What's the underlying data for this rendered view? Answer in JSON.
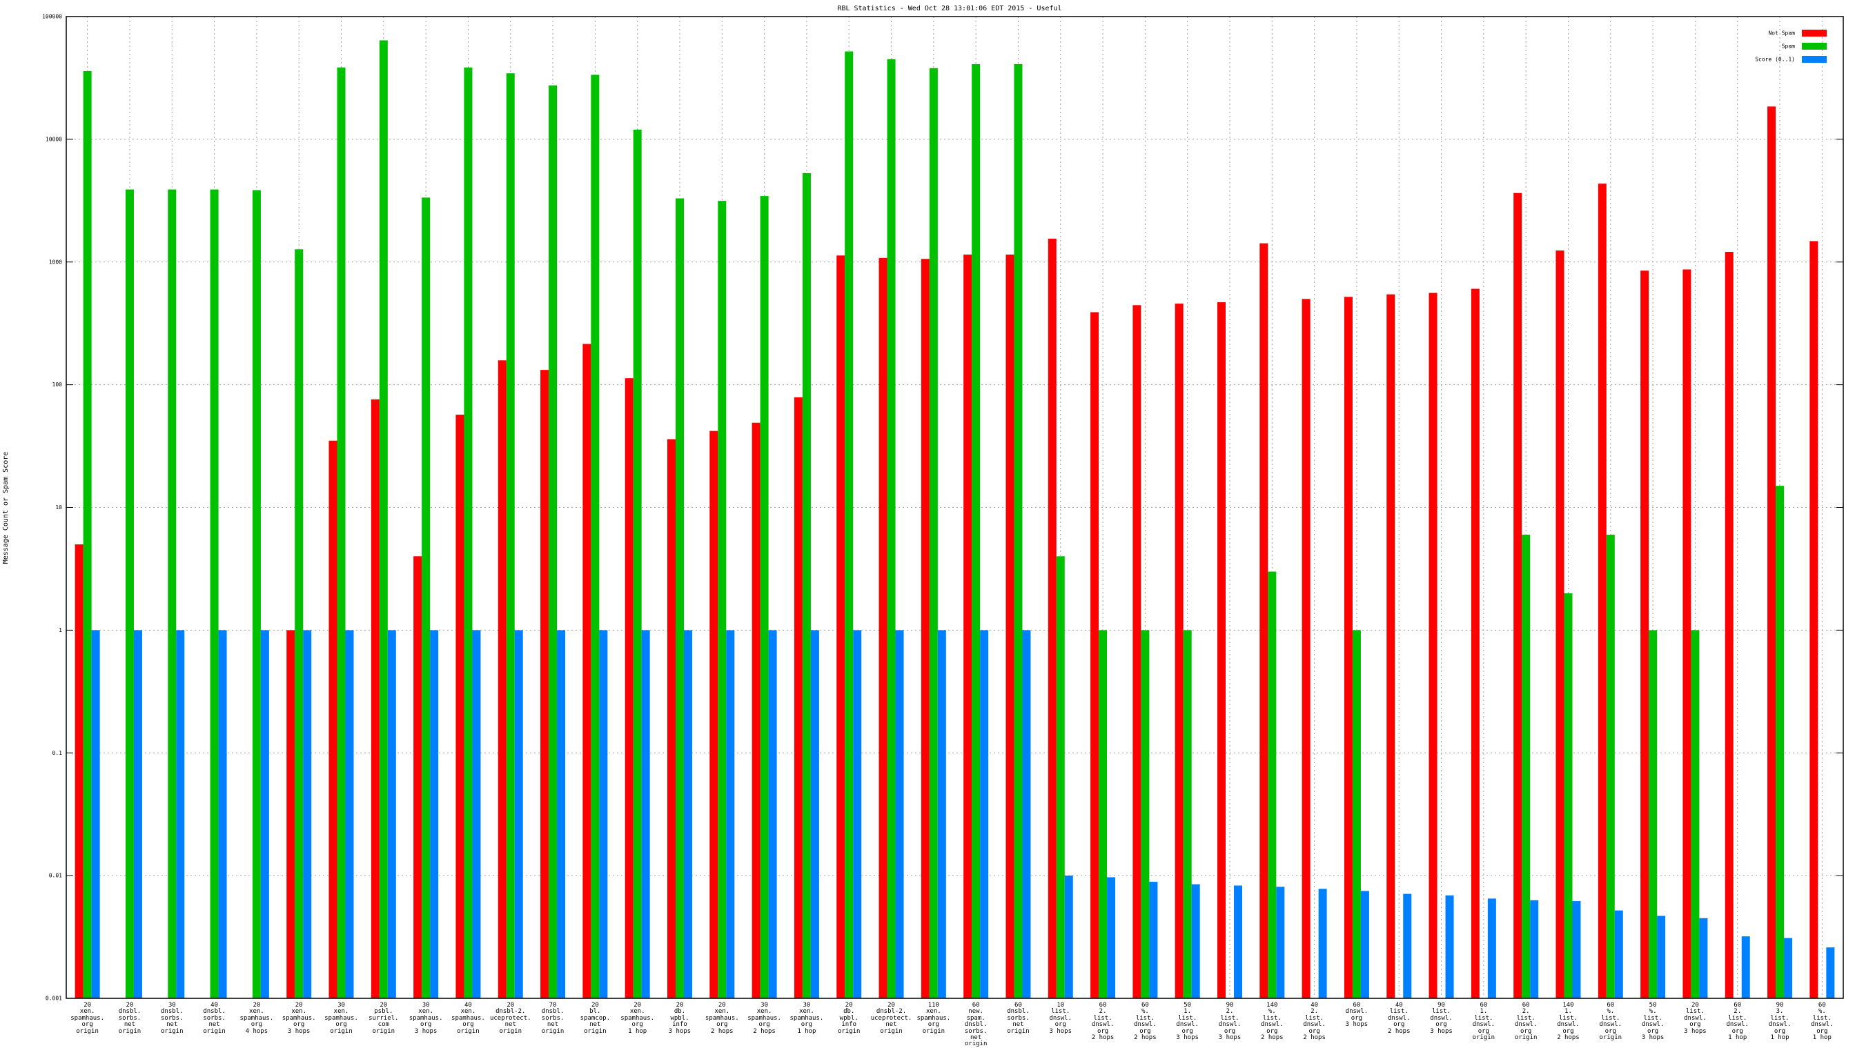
{
  "chart_data": {
    "type": "bar",
    "title": "RBL Statistics - Wed Oct 28 13:01:06 EDT 2015 - Useful",
    "y_label": "Message Count or Spam Score",
    "log_y": true,
    "grid": true,
    "legend": "upper right",
    "ylim": [
      0.001,
      100000
    ],
    "yticks": [
      100000,
      10000,
      1000,
      100,
      10,
      1,
      0.1,
      0.01,
      0.001
    ],
    "categories": [
      "20\nxen.\nspamhaus.\norg\norigin",
      "20\ndnsbl.\nsorbs.\nnet\norigin",
      "30\ndnsbl.\nsorbs.\nnet\norigin",
      "40\ndnsbl.\nsorbs.\nnet\norigin",
      "20\nxen.\nspamhaus.\norg\n4 hops",
      "20\nxen.\nspamhaus.\norg\n3 hops",
      "30\nxen.\nspamhaus.\norg\norigin",
      "20\npsbl.\nsurriel.\ncom\norigin",
      "30\nxen.\nspamhaus.\norg\n3 hops",
      "40\nxen.\nspamhaus.\norg\norigin",
      "20\ndnsbl-2.\nuceprotect.\nnet\norigin",
      "70\ndnsbl.\nsorbs.\nnet\norigin",
      "20\nbl.\nspamcop.\nnet\norigin",
      "20\nxen.\nspamhaus.\norg\n1 hop",
      "20\ndb.\nwpbl.\ninfo\n3 hops",
      "20\nxen.\nspamhaus.\norg\n2 hops",
      "30\nxen.\nspamhaus.\norg\n2 hops",
      "30\nxen.\nspamhaus.\norg\n1 hop",
      "20\ndb.\nwpbl.\ninfo\norigin",
      "20\ndnsbl-2.\nuceprotect.\nnet\norigin",
      "110\nxen.\nspamhaus.\norg\norigin",
      "60\nnew.\nspam.\ndnsbl.\nsorbs.\nnet\norigin",
      "60\ndnsbl.\nsorbs.\nnet\norigin",
      "10\nlist.\ndnswl.\norg\n3 hops",
      "60\n2.\nlist.\ndnswl.\norg\n2 hops",
      "60\n%.\nlist.\ndnswl.\norg\n2 hops",
      "50\n1.\nlist.\ndnswl.\norg\n3 hops",
      "90\n2.\nlist.\ndnswl.\norg\n3 hops",
      "140\n%.\nlist.\ndnswl.\norg\n2 hops",
      "40\n2.\nlist.\ndnswl.\norg\n2 hops",
      "60\ndnswl.\norg\n3 hops",
      "40\nlist.\ndnswl.\norg\n2 hops",
      "90\nlist.\ndnswl.\norg\n3 hops",
      "60\n1.\nlist.\ndnswl.\norg\norigin",
      "60\n2.\nlist.\ndnswl.\norg\norigin",
      "140\n1.\nlist.\ndnswl.\norg\n2 hops",
      "60\n%.\nlist.\ndnswl.\norg\norigin",
      "50\n%.\nlist.\ndnswl.\norg\n3 hops",
      "20\nlist.\ndnswl.\norg\n3 hops",
      "60\n2.\nlist.\ndnswl.\norg\n1 hop",
      "90\n3.\nlist.\ndnswl.\norg\n1 hop",
      "60\n%.\nlist.\ndnswl.\norg\n1 hop"
    ],
    "series": [
      {
        "name": "Not Spam",
        "color": "#ff0000",
        "values": [
          5,
          null,
          null,
          null,
          null,
          1,
          35,
          76,
          4,
          57,
          158,
          132,
          215,
          113,
          36,
          42,
          49,
          79,
          1130,
          1080,
          1060,
          1150,
          1150,
          1550,
          390,
          445,
          458,
          470,
          1420,
          500,
          520,
          545,
          560,
          605,
          3650,
          1240,
          4350,
          850,
          870,
          1210,
          18500,
          1480
        ]
      },
      {
        "name": "Spam",
        "color": "#00c000",
        "values": [
          36000,
          3900,
          3900,
          3900,
          3850,
          1270,
          38500,
          64000,
          3350,
          38500,
          34500,
          27500,
          33500,
          12000,
          3300,
          3150,
          3450,
          5300,
          52000,
          45000,
          38000,
          41000,
          41000,
          4,
          1,
          1,
          1,
          null,
          3,
          null,
          1,
          null,
          null,
          null,
          6,
          2,
          6,
          1,
          1,
          null,
          15,
          null
        ]
      },
      {
        "name": "Score (0..1)",
        "color": "#0080ff",
        "values": [
          1,
          1,
          1,
          1,
          1,
          1,
          1,
          1,
          1,
          1,
          1,
          1,
          1,
          1,
          1,
          1,
          1,
          1,
          1,
          1,
          1,
          1,
          1,
          0.01,
          0.0097,
          0.0089,
          0.0085,
          0.0083,
          0.0081,
          0.0078,
          0.0075,
          0.0071,
          0.0069,
          0.0065,
          0.0063,
          0.0062,
          0.0052,
          0.0047,
          0.0045,
          0.0032,
          0.0031,
          0.0026
        ]
      }
    ]
  }
}
